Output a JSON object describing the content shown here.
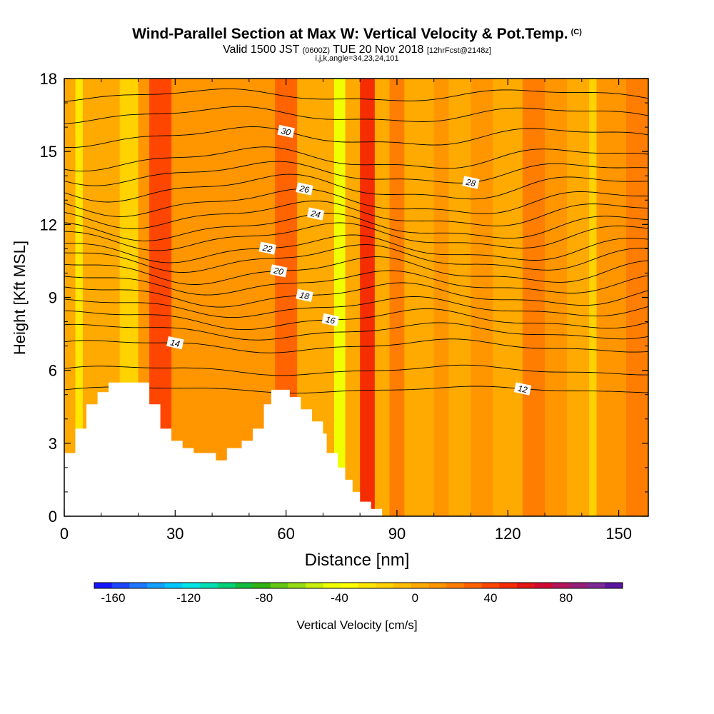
{
  "title": {
    "main": "Wind-Parallel Section at Max W: Vertical Velocity & Pot.Temp.",
    "copyright": "(C)",
    "valid": "Valid 1500 JST",
    "utc": "(0600Z)",
    "date": "TUE 20 Nov 2018",
    "fcst": "[12hrFcst@2148z]",
    "indices": "i,j,k,angle=34,23,24,101"
  },
  "chart_data": {
    "type": "heatmap",
    "xlabel": "Distance [nm]",
    "ylabel": "Height [Kft MSL]",
    "xlim": [
      0,
      158
    ],
    "ylim": [
      0,
      18
    ],
    "xticks": [
      0,
      30,
      60,
      90,
      120,
      150
    ],
    "yticks": [
      0,
      3,
      6,
      9,
      12,
      15,
      18
    ],
    "colorbar": {
      "label": "Vertical Velocity [cm/s]",
      "ticks": [
        -160,
        -120,
        -80,
        -40,
        0,
        40,
        80
      ],
      "min": -170,
      "max": 110,
      "colors": [
        "#1414ff",
        "#1e46ff",
        "#1e78ff",
        "#14a0ff",
        "#00c8ff",
        "#00e6e6",
        "#00e0b4",
        "#00d278",
        "#14be3c",
        "#32b414",
        "#64c814",
        "#96dc14",
        "#c8f00a",
        "#f0ff00",
        "#ffff00",
        "#ffe600",
        "#ffd200",
        "#ffbe00",
        "#ffaa00",
        "#ff9600",
        "#ff7d00",
        "#ff6400",
        "#ff4600",
        "#f52d00",
        "#e61414",
        "#d20a32",
        "#b4145a",
        "#961e78",
        "#7d2896",
        "#5a14a0"
      ]
    },
    "velocity_columns": [
      {
        "x": 0,
        "w": 3,
        "v": 0
      },
      {
        "x": 3,
        "w": 2,
        "v": -25
      },
      {
        "x": 5,
        "w": 10,
        "v": 0
      },
      {
        "x": 15,
        "w": 5,
        "v": -20
      },
      {
        "x": 20,
        "w": 3,
        "v": 10
      },
      {
        "x": 23,
        "w": 6,
        "v": 42
      },
      {
        "x": 29,
        "w": 10,
        "v": 8
      },
      {
        "x": 39,
        "w": 18,
        "v": 8
      },
      {
        "x": 57,
        "w": 6,
        "v": 28
      },
      {
        "x": 63,
        "w": 10,
        "v": 6
      },
      {
        "x": 73,
        "w": 3,
        "v": -45
      },
      {
        "x": 76,
        "w": 4,
        "v": 2
      },
      {
        "x": 80,
        "w": 4,
        "v": 45
      },
      {
        "x": 84,
        "w": 4,
        "v": 6
      },
      {
        "x": 88,
        "w": 4,
        "v": 22
      },
      {
        "x": 92,
        "w": 8,
        "v": 4
      },
      {
        "x": 100,
        "w": 4,
        "v": 15
      },
      {
        "x": 104,
        "w": 6,
        "v": 5
      },
      {
        "x": 110,
        "w": 6,
        "v": 10
      },
      {
        "x": 116,
        "w": 8,
        "v": 4
      },
      {
        "x": 124,
        "w": 6,
        "v": 20
      },
      {
        "x": 130,
        "w": 6,
        "v": 8
      },
      {
        "x": 136,
        "w": 6,
        "v": 4
      },
      {
        "x": 142,
        "w": 2,
        "v": -20
      },
      {
        "x": 144,
        "w": 8,
        "v": 12
      },
      {
        "x": 152,
        "w": 6,
        "v": 25
      }
    ],
    "terrain": [
      [
        0,
        2.6
      ],
      [
        3,
        2.6
      ],
      [
        3,
        3.6
      ],
      [
        6,
        3.6
      ],
      [
        6,
        4.6
      ],
      [
        9,
        4.6
      ],
      [
        9,
        5.1
      ],
      [
        12,
        5.1
      ],
      [
        12,
        5.5
      ],
      [
        23,
        5.5
      ],
      [
        23,
        4.6
      ],
      [
        26,
        4.6
      ],
      [
        26,
        3.6
      ],
      [
        29,
        3.6
      ],
      [
        29,
        3.1
      ],
      [
        32,
        3.1
      ],
      [
        32,
        2.8
      ],
      [
        35,
        2.8
      ],
      [
        35,
        2.6
      ],
      [
        41,
        2.6
      ],
      [
        41,
        2.3
      ],
      [
        44,
        2.3
      ],
      [
        44,
        2.8
      ],
      [
        48,
        2.8
      ],
      [
        48,
        3.1
      ],
      [
        51,
        3.1
      ],
      [
        51,
        3.6
      ],
      [
        54,
        3.6
      ],
      [
        54,
        4.6
      ],
      [
        56,
        4.6
      ],
      [
        56,
        5.2
      ],
      [
        61,
        5.2
      ],
      [
        61,
        4.9
      ],
      [
        64,
        4.9
      ],
      [
        64,
        4.4
      ],
      [
        67,
        4.4
      ],
      [
        67,
        3.9
      ],
      [
        70,
        3.9
      ],
      [
        70,
        3.4
      ],
      [
        71,
        3.4
      ],
      [
        71,
        2.6
      ],
      [
        74,
        2.6
      ],
      [
        74,
        2.0
      ],
      [
        76,
        2.0
      ],
      [
        76,
        1.5
      ],
      [
        78,
        1.5
      ],
      [
        78,
        1.0
      ],
      [
        80,
        1.0
      ],
      [
        80,
        0.6
      ],
      [
        83,
        0.6
      ],
      [
        83,
        0.3
      ],
      [
        86,
        0.3
      ],
      [
        86,
        0
      ],
      [
        0,
        0
      ]
    ],
    "theta_contours": [
      {
        "value": 12,
        "base": 5.2,
        "amp": 0.2,
        "label_x": 124
      },
      {
        "value": 13,
        "base": 6.0,
        "amp": 0.3,
        "label_x": null
      },
      {
        "value": 14,
        "base": 7.0,
        "amp": 0.4,
        "label_x": 30
      },
      {
        "value": 15,
        "base": 7.6,
        "amp": 0.5,
        "label_x": null
      },
      {
        "value": 16,
        "base": 8.1,
        "amp": 0.6,
        "label_x": 72
      },
      {
        "value": 17,
        "base": 8.6,
        "amp": 0.6,
        "label_x": null
      },
      {
        "value": 18,
        "base": 9.1,
        "amp": 0.7,
        "label_x": 65
      },
      {
        "value": 19,
        "base": 9.6,
        "amp": 0.7,
        "label_x": null
      },
      {
        "value": 20,
        "base": 10.1,
        "amp": 0.8,
        "label_x": 58
      },
      {
        "value": 21,
        "base": 10.6,
        "amp": 0.8,
        "label_x": null
      },
      {
        "value": 22,
        "base": 11.0,
        "amp": 0.8,
        "label_x": 55
      },
      {
        "value": 23,
        "base": 11.5,
        "amp": 0.8,
        "label_x": null
      },
      {
        "value": 24,
        "base": 11.9,
        "amp": 0.8,
        "label_x": 68
      },
      {
        "value": 25,
        "base": 12.4,
        "amp": 0.8,
        "label_x": null
      },
      {
        "value": 26,
        "base": 12.9,
        "amp": 0.8,
        "label_x": 65
      },
      {
        "value": 27,
        "base": 13.5,
        "amp": 0.8,
        "label_x": null
      },
      {
        "value": 28,
        "base": 14.1,
        "amp": 0.7,
        "label_x": 110
      },
      {
        "value": 29,
        "base": 14.7,
        "amp": 0.7,
        "label_x": null
      },
      {
        "value": 30,
        "base": 15.6,
        "amp": 0.6,
        "label_x": 60
      },
      {
        "value": 31,
        "base": 16.5,
        "amp": 0.5,
        "label_x": null
      },
      {
        "value": 32,
        "base": 17.3,
        "amp": 0.4,
        "label_x": null
      }
    ]
  }
}
